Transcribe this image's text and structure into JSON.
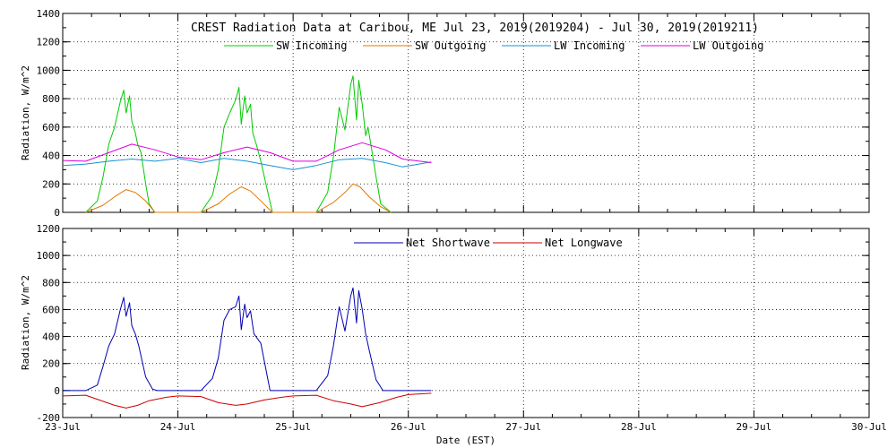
{
  "chart_data": [
    {
      "type": "line",
      "title": "CREST Radiation Data at Caribou, ME   Jul 23, 2019(2019204) - Jul 30, 2019(2019211)",
      "xlabel": "",
      "ylabel": "Radiation, W/m^2",
      "ylim": [
        0,
        1400
      ],
      "yticks": [
        0,
        200,
        400,
        600,
        800,
        1000,
        1200,
        1400
      ],
      "xlim_days": [
        0,
        7
      ],
      "grid": true,
      "series": [
        {
          "name": "SW Incoming",
          "color": "#00cc00",
          "x": [
            0.2,
            0.3,
            0.35,
            0.4,
            0.45,
            0.5,
            0.53,
            0.55,
            0.58,
            0.6,
            0.63,
            0.65,
            0.68,
            0.72,
            0.75,
            0.8,
            1.2,
            1.3,
            1.35,
            1.4,
            1.45,
            1.5,
            1.53,
            1.55,
            1.58,
            1.6,
            1.63,
            1.65,
            1.68,
            1.72,
            1.75,
            1.82,
            2.2,
            2.3,
            2.35,
            2.4,
            2.45,
            2.5,
            2.52,
            2.55,
            2.57,
            2.6,
            2.63,
            2.65,
            2.68,
            2.72,
            2.76,
            2.85
          ],
          "values": [
            0,
            80,
            250,
            480,
            600,
            780,
            860,
            700,
            820,
            640,
            560,
            480,
            420,
            200,
            60,
            0,
            0,
            120,
            300,
            600,
            700,
            790,
            880,
            620,
            820,
            700,
            760,
            560,
            480,
            360,
            250,
            0,
            0,
            140,
            390,
            740,
            580,
            900,
            960,
            650,
            930,
            760,
            540,
            600,
            450,
            250,
            60,
            0
          ]
        },
        {
          "name": "SW Outgoing",
          "color": "#e07800",
          "x": [
            0.2,
            0.35,
            0.45,
            0.55,
            0.63,
            0.72,
            0.8,
            1.2,
            1.35,
            1.45,
            1.55,
            1.63,
            1.72,
            1.82,
            2.2,
            2.35,
            2.45,
            2.52,
            2.58,
            2.66,
            2.76,
            2.85
          ],
          "values": [
            0,
            50,
            110,
            160,
            140,
            80,
            0,
            0,
            60,
            130,
            180,
            150,
            80,
            0,
            0,
            70,
            140,
            200,
            180,
            110,
            40,
            0
          ]
        },
        {
          "name": "LW Incoming",
          "color": "#1890d8",
          "x": [
            0.0,
            0.2,
            0.4,
            0.6,
            0.8,
            1.0,
            1.2,
            1.4,
            1.6,
            1.8,
            2.0,
            2.2,
            2.4,
            2.6,
            2.8,
            2.95,
            3.2
          ],
          "values": [
            330,
            340,
            360,
            375,
            360,
            380,
            350,
            380,
            360,
            330,
            300,
            330,
            370,
            380,
            350,
            320,
            355
          ]
        },
        {
          "name": "LW Outgoing",
          "color": "#dd00dd",
          "x": [
            0.0,
            0.2,
            0.4,
            0.6,
            0.8,
            1.0,
            1.2,
            1.4,
            1.6,
            1.8,
            2.0,
            2.2,
            2.4,
            2.6,
            2.8,
            2.95,
            3.2
          ],
          "values": [
            365,
            360,
            420,
            480,
            440,
            390,
            370,
            420,
            460,
            420,
            360,
            360,
            440,
            490,
            440,
            375,
            350
          ]
        }
      ]
    },
    {
      "type": "line",
      "title": "",
      "xlabel": "Date (EST)",
      "ylabel": "Radiation, W/m^2",
      "ylim": [
        -200,
        1200
      ],
      "yticks": [
        -200,
        0,
        200,
        400,
        600,
        800,
        1000,
        1200
      ],
      "xlim_days": [
        0,
        7
      ],
      "categories": [
        "23-Jul",
        "24-Jul",
        "25-Jul",
        "26-Jul",
        "27-Jul",
        "28-Jul",
        "29-Jul",
        "30-Jul"
      ],
      "grid": true,
      "series": [
        {
          "name": "Net Shortwave",
          "color": "#0000b4",
          "x": [
            0.0,
            0.2,
            0.3,
            0.35,
            0.4,
            0.45,
            0.5,
            0.53,
            0.55,
            0.58,
            0.6,
            0.63,
            0.66,
            0.72,
            0.78,
            0.82,
            1.2,
            1.3,
            1.35,
            1.4,
            1.45,
            1.5,
            1.53,
            1.55,
            1.58,
            1.6,
            1.63,
            1.66,
            1.72,
            1.8,
            2.0,
            2.2,
            2.3,
            2.35,
            2.4,
            2.45,
            2.5,
            2.52,
            2.55,
            2.57,
            2.6,
            2.63,
            2.66,
            2.72,
            2.78,
            3.0,
            3.2
          ],
          "values": [
            0,
            0,
            40,
            180,
            330,
            420,
            600,
            690,
            550,
            650,
            480,
            420,
            330,
            100,
            10,
            0,
            0,
            90,
            240,
            520,
            600,
            620,
            700,
            450,
            640,
            540,
            590,
            420,
            350,
            0,
            0,
            0,
            110,
            330,
            620,
            440,
            700,
            760,
            500,
            740,
            600,
            420,
            300,
            80,
            0,
            0,
            0
          ]
        },
        {
          "name": "Net Longwave",
          "color": "#cc0000",
          "x": [
            0.0,
            0.2,
            0.35,
            0.45,
            0.55,
            0.65,
            0.75,
            0.9,
            1.0,
            1.2,
            1.35,
            1.5,
            1.6,
            1.75,
            1.9,
            2.0,
            2.2,
            2.35,
            2.5,
            2.6,
            2.75,
            2.9,
            3.0,
            3.2
          ],
          "values": [
            -40,
            -35,
            -80,
            -110,
            -130,
            -110,
            -75,
            -50,
            -40,
            -45,
            -90,
            -110,
            -100,
            -70,
            -50,
            -40,
            -35,
            -75,
            -100,
            -120,
            -90,
            -50,
            -30,
            -20
          ]
        }
      ]
    }
  ],
  "legend_top": [
    "SW Incoming",
    "SW Outgoing",
    "LW Incoming",
    "LW Outgoing"
  ],
  "legend_bottom": [
    "Net Shortwave",
    "Net Longwave"
  ]
}
